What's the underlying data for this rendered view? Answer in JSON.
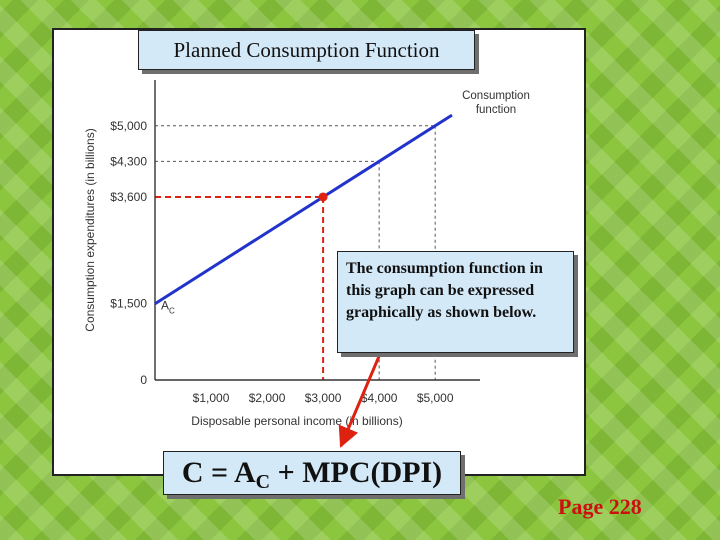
{
  "slide": {
    "title": "Planned Consumption Function",
    "note": "The consumption function in this graph can be expressed graphically as shown below.",
    "formula": {
      "c": "C",
      "eq": " = A",
      "sub": "C",
      "rest": " + MPC(DPI)"
    },
    "page": "Page 228"
  },
  "chart_data": {
    "type": "line",
    "xlabel": "Disposable personal income (in billions)",
    "ylabel": "Consumption expenditures (in billions)",
    "x_ticks": [
      {
        "value": 1000,
        "label": "$1,000"
      },
      {
        "value": 2000,
        "label": "$2,000"
      },
      {
        "value": 3000,
        "label": "$3,000"
      },
      {
        "value": 4000,
        "label": "$4,000"
      },
      {
        "value": 5000,
        "label": "$5,000"
      }
    ],
    "y_ticks": [
      {
        "value": 0,
        "label": "0"
      },
      {
        "value": 1500,
        "label": "$1,500"
      },
      {
        "value": 3600,
        "label": "$3,600"
      },
      {
        "value": 4300,
        "label": "$4,300"
      },
      {
        "value": 5000,
        "label": "$5,000"
      }
    ],
    "xlim": [
      0,
      5800
    ],
    "ylim": [
      0,
      5900
    ],
    "series": [
      {
        "name": "Consumption function",
        "color": "#2233cc",
        "x": [
          0,
          5300
        ],
        "y": [
          1500,
          5210
        ]
      }
    ],
    "highlight_point": {
      "x": 3000,
      "y": 3600,
      "color": "#dd2211"
    },
    "guides": [
      {
        "x": 4000,
        "y": 4300,
        "color": "#555555"
      },
      {
        "x": 5000,
        "y": 5000,
        "color": "#555555"
      },
      {
        "x": 3000,
        "y": 3600,
        "color": "#dd2211"
      }
    ],
    "annotations": {
      "intercept": {
        "label": "A",
        "sub": "C",
        "x": 0,
        "y": 1500
      },
      "curve_label": [
        "Consumption",
        "function"
      ]
    },
    "colors": {
      "line": "#2233cc",
      "highlight": "#dd2211",
      "arrow": "#dd2211"
    }
  }
}
